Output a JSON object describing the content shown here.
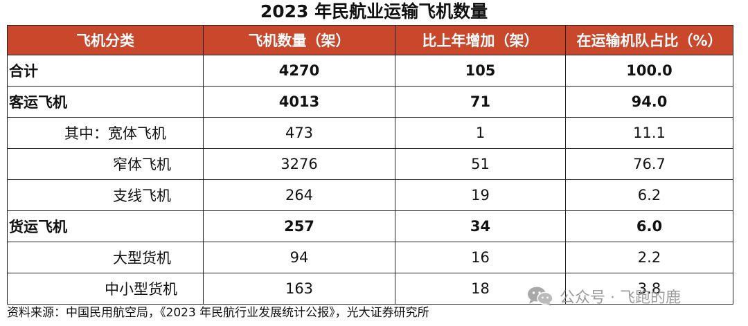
{
  "title": "2023 年民航业运输飞机数量",
  "headers": [
    "飞机分类",
    "飞机数量（架）",
    "比上年增加（架）",
    "在运输机队占比（%）"
  ],
  "rows": [
    {
      "label": "合计",
      "count": "4270",
      "increase": "105",
      "share": "100.0"
    },
    {
      "label": "客运飞机",
      "count": "4013",
      "increase": "71",
      "share": "94.0"
    },
    {
      "label": "其中：宽体飞机",
      "count": "473",
      "increase": "1",
      "share": "11.1"
    },
    {
      "label": "窄体飞机",
      "count": "3276",
      "increase": "51",
      "share": "76.7"
    },
    {
      "label": "支线飞机",
      "count": "264",
      "increase": "19",
      "share": "6.2"
    },
    {
      "label": "货运飞机",
      "count": "257",
      "increase": "34",
      "share": "6.0"
    },
    {
      "label": "大型货机",
      "count": "94",
      "increase": "16",
      "share": "2.2"
    },
    {
      "label": "中小型货机",
      "count": "163",
      "increase": "18",
      "share": "3.8"
    }
  ],
  "source": "资料来源：中国民用航空局，《2023 年民航行业发展统计公报》，光大证券研究所",
  "watermark": "公众号 · 飞跑的鹿",
  "colors": {
    "header_bg": "#c9472b",
    "header_text": "#ffffff",
    "border": "#222222"
  },
  "watermark_icon": "wechat-icon"
}
